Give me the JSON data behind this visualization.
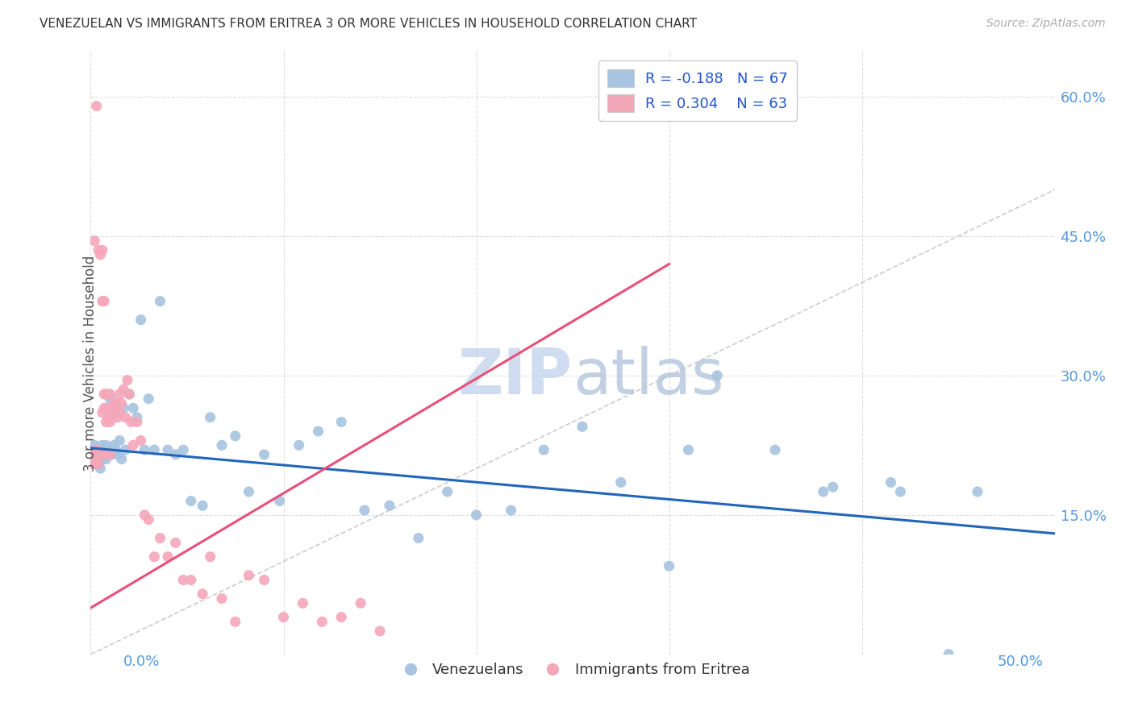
{
  "title": "VENEZUELAN VS IMMIGRANTS FROM ERITREA 3 OR MORE VEHICLES IN HOUSEHOLD CORRELATION CHART",
  "source": "Source: ZipAtlas.com",
  "ylabel": "3 or more Vehicles in Household",
  "xlim": [
    0.0,
    0.5
  ],
  "ylim": [
    0.0,
    0.65
  ],
  "blue_R": -0.188,
  "blue_N": 67,
  "pink_R": 0.304,
  "pink_N": 63,
  "blue_color": "#a8c4e0",
  "pink_color": "#f4a7b9",
  "blue_line_color": "#2266bb",
  "pink_line_color": "#e8507a",
  "diagonal_color": "#cccccc",
  "grid_color": "#dddddd",
  "title_color": "#333333",
  "source_color": "#aaaaaa",
  "legend_R_color": "#2255cc",
  "watermark_color": "#dde8f5",
  "background_color": "#ffffff",
  "figsize": [
    14.06,
    8.92
  ],
  "blue_scatter_x": [
    0.001,
    0.002,
    0.002,
    0.003,
    0.003,
    0.004,
    0.004,
    0.005,
    0.005,
    0.006,
    0.006,
    0.007,
    0.007,
    0.008,
    0.008,
    0.009,
    0.01,
    0.01,
    0.011,
    0.012,
    0.013,
    0.014,
    0.015,
    0.016,
    0.017,
    0.018,
    0.02,
    0.022,
    0.024,
    0.026,
    0.028,
    0.03,
    0.033,
    0.036,
    0.04,
    0.044,
    0.048,
    0.052,
    0.058,
    0.062,
    0.068,
    0.075,
    0.082,
    0.09,
    0.098,
    0.108,
    0.118,
    0.13,
    0.142,
    0.155,
    0.17,
    0.185,
    0.2,
    0.218,
    0.235,
    0.255,
    0.275,
    0.3,
    0.325,
    0.355,
    0.385,
    0.415,
    0.445,
    0.42,
    0.46,
    0.38,
    0.31
  ],
  "blue_scatter_y": [
    0.22,
    0.215,
    0.225,
    0.21,
    0.22,
    0.205,
    0.215,
    0.2,
    0.215,
    0.21,
    0.225,
    0.215,
    0.22,
    0.21,
    0.225,
    0.215,
    0.22,
    0.275,
    0.215,
    0.225,
    0.22,
    0.215,
    0.23,
    0.21,
    0.265,
    0.22,
    0.28,
    0.265,
    0.255,
    0.36,
    0.22,
    0.275,
    0.22,
    0.38,
    0.22,
    0.215,
    0.22,
    0.165,
    0.16,
    0.255,
    0.225,
    0.235,
    0.175,
    0.215,
    0.165,
    0.225,
    0.24,
    0.25,
    0.155,
    0.16,
    0.125,
    0.175,
    0.15,
    0.155,
    0.22,
    0.245,
    0.185,
    0.095,
    0.3,
    0.22,
    0.18,
    0.185,
    0.0,
    0.175,
    0.175,
    0.175,
    0.22
  ],
  "pink_scatter_x": [
    0.001,
    0.002,
    0.002,
    0.003,
    0.003,
    0.004,
    0.004,
    0.005,
    0.005,
    0.006,
    0.006,
    0.007,
    0.007,
    0.008,
    0.008,
    0.009,
    0.009,
    0.01,
    0.01,
    0.011,
    0.012,
    0.012,
    0.013,
    0.013,
    0.014,
    0.015,
    0.015,
    0.016,
    0.017,
    0.018,
    0.019,
    0.02,
    0.021,
    0.022,
    0.024,
    0.026,
    0.028,
    0.03,
    0.033,
    0.036,
    0.04,
    0.044,
    0.048,
    0.052,
    0.058,
    0.062,
    0.068,
    0.075,
    0.082,
    0.09,
    0.1,
    0.11,
    0.12,
    0.13,
    0.14,
    0.15,
    0.002,
    0.003,
    0.006,
    0.007,
    0.008,
    0.01,
    0.012
  ],
  "pink_scatter_y": [
    0.205,
    0.215,
    0.205,
    0.59,
    0.215,
    0.205,
    0.435,
    0.215,
    0.43,
    0.435,
    0.38,
    0.38,
    0.28,
    0.28,
    0.25,
    0.255,
    0.265,
    0.25,
    0.28,
    0.265,
    0.27,
    0.26,
    0.265,
    0.27,
    0.255,
    0.28,
    0.26,
    0.27,
    0.285,
    0.255,
    0.295,
    0.28,
    0.25,
    0.225,
    0.25,
    0.23,
    0.15,
    0.145,
    0.105,
    0.125,
    0.105,
    0.12,
    0.08,
    0.08,
    0.065,
    0.105,
    0.06,
    0.035,
    0.085,
    0.08,
    0.04,
    0.055,
    0.035,
    0.04,
    0.055,
    0.025,
    0.445,
    0.22,
    0.26,
    0.265,
    0.215,
    0.215,
    0.26
  ]
}
